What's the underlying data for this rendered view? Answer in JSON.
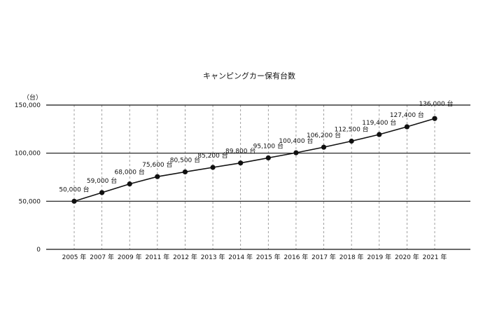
{
  "chart_data": {
    "type": "line",
    "title": "キャンピングカー保有台数",
    "unit": "（台）",
    "categories": [
      "2005 年",
      "2007 年",
      "2009 年",
      "2011 年",
      "2012 年",
      "2013 年",
      "2014 年",
      "2015 年",
      "2016 年",
      "2017 年",
      "2018 年",
      "2019 年",
      "2020 年",
      "2021 年"
    ],
    "series": [
      {
        "values": [
          50000,
          59000,
          68000,
          75600,
          80500,
          85200,
          89800,
          95100,
          100400,
          106200,
          112500,
          119400,
          127400,
          136000
        ],
        "labels": [
          "50,000 台",
          "59,000 台",
          "68,000 台",
          "75,600 台",
          "80,500 台",
          "85,200 台",
          "89,800 台",
          "95,100 台",
          "100,400 台",
          "106,200 台",
          "112,500 台",
          "119,400 台",
          "127,400 台",
          "136,000 台"
        ]
      }
    ],
    "ylim": [
      0,
      150000
    ],
    "yticks": [
      0,
      50000,
      100000,
      150000
    ],
    "ytick_labels": [
      "0",
      "50,000",
      "100,000",
      "150,000"
    ],
    "grid": {
      "horizontal": true,
      "vertical": "dashed"
    },
    "legend": "none",
    "colors": {
      "line": "#111111",
      "marker": "#111111",
      "grid": "#111111",
      "vgrid": "#888888"
    }
  }
}
